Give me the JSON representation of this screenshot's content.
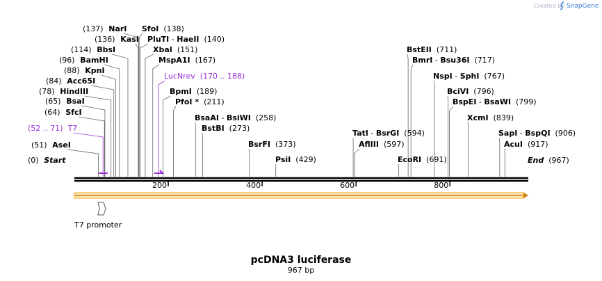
{
  "credit": {
    "prefix": "Created by",
    "brand": "SnapGene"
  },
  "title": "pcDNA3 luciferase",
  "subtitle": "967 bp",
  "sequence_length": 967,
  "ruler": {
    "ticks": [
      200,
      400,
      600,
      800
    ]
  },
  "colors": {
    "line": "#000000",
    "primer": "#9b30d9",
    "orf_fill": "#f5b342",
    "orf_stroke": "#c8800f",
    "leader": "#666666"
  },
  "labels": [
    {
      "parts": [
        {
          "t": "(0)",
          "w": "n"
        },
        {
          "t": "Start",
          "w": "i"
        }
      ],
      "bp": 0
    },
    {
      "parts": [
        {
          "t": "(51)",
          "w": "n"
        },
        {
          "t": "AseI",
          "w": "b"
        }
      ],
      "bp": 51
    },
    {
      "parts": [
        {
          "t": "(52 .. 71)",
          "w": "p"
        },
        {
          "t": "T7",
          "w": "p"
        }
      ],
      "bp": 61,
      "primer": true
    },
    {
      "parts": [
        {
          "t": "(64)",
          "w": "n"
        },
        {
          "t": "SfcI",
          "w": "b"
        }
      ],
      "bp": 64
    },
    {
      "parts": [
        {
          "t": "(65)",
          "w": "n"
        },
        {
          "t": "BsaI",
          "w": "b"
        }
      ],
      "bp": 65
    },
    {
      "parts": [
        {
          "t": "(78)",
          "w": "n"
        },
        {
          "t": "HindIII",
          "w": "b"
        }
      ],
      "bp": 78
    },
    {
      "parts": [
        {
          "t": "(84)",
          "w": "n"
        },
        {
          "t": "Acc65I",
          "w": "b"
        }
      ],
      "bp": 84
    },
    {
      "parts": [
        {
          "t": "(88)",
          "w": "n"
        },
        {
          "t": "KpnI",
          "w": "b"
        }
      ],
      "bp": 88
    },
    {
      "parts": [
        {
          "t": "(96)",
          "w": "n"
        },
        {
          "t": "BamHI",
          "w": "b"
        }
      ],
      "bp": 96
    },
    {
      "parts": [
        {
          "t": "(114)",
          "w": "n"
        },
        {
          "t": "BbsI",
          "w": "b"
        }
      ],
      "bp": 114
    },
    {
      "parts": [
        {
          "t": "(136)",
          "w": "n"
        },
        {
          "t": "KasI",
          "w": "b"
        }
      ],
      "bp": 136
    },
    {
      "parts": [
        {
          "t": "(137)",
          "w": "n"
        },
        {
          "t": "NarI",
          "w": "b"
        }
      ],
      "bp": 137
    },
    {
      "parts": [
        {
          "t": "SfoI",
          "w": "b"
        },
        {
          "t": "(138)",
          "w": "n"
        }
      ],
      "bp": 138
    },
    {
      "parts": [
        {
          "t": "PluTI",
          "w": "b"
        },
        {
          "t": " - ",
          "w": "n"
        },
        {
          "t": "HaeII",
          "w": "b"
        },
        {
          "t": "(140)",
          "w": "n"
        }
      ],
      "bp": 140
    },
    {
      "parts": [
        {
          "t": "XbaI",
          "w": "b"
        },
        {
          "t": "(151)",
          "w": "n"
        }
      ],
      "bp": 151
    },
    {
      "parts": [
        {
          "t": "MspA1I",
          "w": "b"
        },
        {
          "t": "(167)",
          "w": "n"
        }
      ],
      "bp": 167
    },
    {
      "parts": [
        {
          "t": "LucNrev",
          "w": "p"
        },
        {
          "t": "(170 .. 188)",
          "w": "p"
        }
      ],
      "bp": 179,
      "primer": true
    },
    {
      "parts": [
        {
          "t": "BpmI",
          "w": "b"
        },
        {
          "t": "(189)",
          "w": "n"
        }
      ],
      "bp": 189
    },
    {
      "parts": [
        {
          "t": "PfoI *",
          "w": "b"
        },
        {
          "t": "(211)",
          "w": "n"
        }
      ],
      "bp": 211
    },
    {
      "parts": [
        {
          "t": "BsaAI",
          "w": "b"
        },
        {
          "t": " - ",
          "w": "n"
        },
        {
          "t": "BsiWI",
          "w": "b"
        },
        {
          "t": "(258)",
          "w": "n"
        }
      ],
      "bp": 258
    },
    {
      "parts": [
        {
          "t": "BstBI",
          "w": "b"
        },
        {
          "t": "(273)",
          "w": "n"
        }
      ],
      "bp": 273
    },
    {
      "parts": [
        {
          "t": "BsrFI",
          "w": "b"
        },
        {
          "t": "(373)",
          "w": "n"
        }
      ],
      "bp": 373
    },
    {
      "parts": [
        {
          "t": "PsiI",
          "w": "b"
        },
        {
          "t": "(429)",
          "w": "n"
        }
      ],
      "bp": 429
    },
    {
      "parts": [
        {
          "t": "TatI",
          "w": "b"
        },
        {
          "t": " - ",
          "w": "n"
        },
        {
          "t": "BsrGI",
          "w": "b"
        },
        {
          "t": "(594)",
          "w": "n"
        }
      ],
      "bp": 594
    },
    {
      "parts": [
        {
          "t": "AflIII",
          "w": "b"
        },
        {
          "t": "(597)",
          "w": "n"
        }
      ],
      "bp": 597
    },
    {
      "parts": [
        {
          "t": "EcoRI",
          "w": "b"
        },
        {
          "t": "(691)",
          "w": "n"
        }
      ],
      "bp": 691
    },
    {
      "parts": [
        {
          "t": "BstEII",
          "w": "b"
        },
        {
          "t": "(711)",
          "w": "n"
        }
      ],
      "bp": 711
    },
    {
      "parts": [
        {
          "t": "BmrI",
          "w": "b"
        },
        {
          "t": " - ",
          "w": "n"
        },
        {
          "t": "Bsu36I",
          "w": "b"
        },
        {
          "t": "(717)",
          "w": "n"
        }
      ],
      "bp": 717
    },
    {
      "parts": [
        {
          "t": "NspI",
          "w": "b"
        },
        {
          "t": " - ",
          "w": "n"
        },
        {
          "t": "SphI",
          "w": "b"
        },
        {
          "t": "(767)",
          "w": "n"
        }
      ],
      "bp": 767
    },
    {
      "parts": [
        {
          "t": "BciVI",
          "w": "b"
        },
        {
          "t": "(796)",
          "w": "n"
        }
      ],
      "bp": 796
    },
    {
      "parts": [
        {
          "t": "BspEI",
          "w": "b"
        },
        {
          "t": " - ",
          "w": "n"
        },
        {
          "t": "BsaWI",
          "w": "b"
        },
        {
          "t": "(799)",
          "w": "n"
        }
      ],
      "bp": 799
    },
    {
      "parts": [
        {
          "t": "XcmI",
          "w": "b"
        },
        {
          "t": "(839)",
          "w": "n"
        }
      ],
      "bp": 839
    },
    {
      "parts": [
        {
          "t": "SapI",
          "w": "b"
        },
        {
          "t": " - ",
          "w": "n"
        },
        {
          "t": "BspQI",
          "w": "b"
        },
        {
          "t": "(906)",
          "w": "n"
        }
      ],
      "bp": 906
    },
    {
      "parts": [
        {
          "t": "AcuI",
          "w": "b"
        },
        {
          "t": "(917)",
          "w": "n"
        }
      ],
      "bp": 917
    },
    {
      "parts": [
        {
          "t": "End",
          "w": "i"
        },
        {
          "t": "(967)",
          "w": "n"
        }
      ],
      "bp": 967
    }
  ],
  "features": [
    {
      "name": "T7 promoter",
      "type": "promoter"
    },
    {
      "name": "",
      "type": "orf"
    }
  ]
}
